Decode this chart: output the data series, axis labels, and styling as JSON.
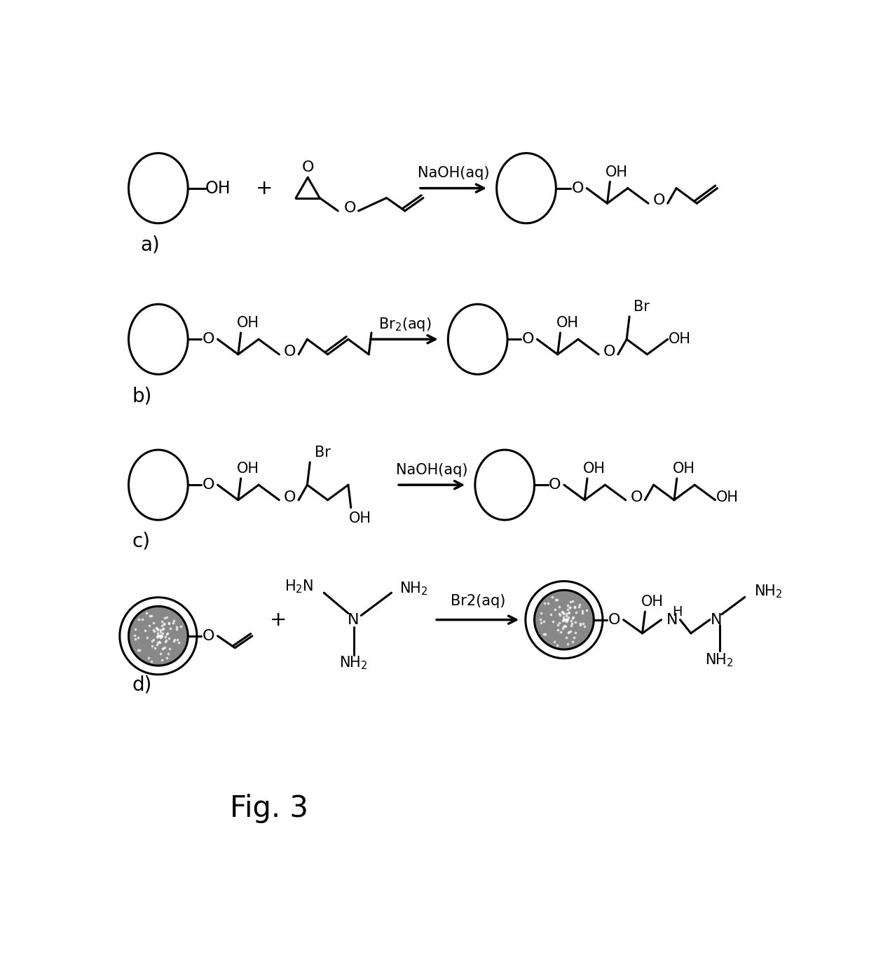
{
  "title": "Fig. 3",
  "background_color": "#ffffff",
  "line_color": "#000000",
  "line_width": 2.2,
  "font_size_label": 20,
  "font_size_formula": 15,
  "font_size_fig": 30,
  "sections": [
    "a)",
    "b)",
    "c)",
    "d)"
  ]
}
